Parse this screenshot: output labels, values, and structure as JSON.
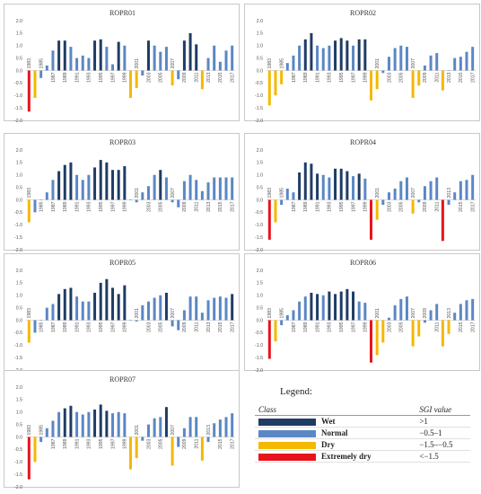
{
  "legend": {
    "title": "Legend:",
    "col_class": "Class",
    "col_value": "SGI value",
    "rows": [
      {
        "name": "Wet",
        "range": ">1",
        "color": "#1F3C64"
      },
      {
        "name": "Normal",
        "range": "−0.5–1",
        "color": "#5B87C4"
      },
      {
        "name": "Dry",
        "range": "−1.5–−0.5",
        "color": "#F5B800"
      },
      {
        "name": "Extremely dry",
        "range": "<−1.5",
        "color": "#E8141C"
      }
    ]
  },
  "chart_data": [
    {
      "type": "bar",
      "title": "ROPR01",
      "ylim": [
        -2.0,
        2.0
      ],
      "yticks": [
        "2.0",
        "1.5",
        "1.0",
        "0.5",
        "0.0",
        "-0.5",
        "-1.0",
        "-1.5",
        "-2.0"
      ],
      "categories": [
        "1983",
        "1984",
        "1985",
        "1986",
        "1987",
        "1988",
        "1989",
        "1990",
        "1991",
        "1992",
        "1993",
        "1994",
        "1995",
        "1996",
        "1997",
        "1998",
        "1999",
        "2000",
        "2001",
        "2002",
        "2003",
        "2004",
        "2005",
        "2006",
        "2007",
        "2008",
        "2009",
        "2010",
        "2011",
        "2012",
        "2013",
        "2014",
        "2015",
        "2016",
        "2017"
      ],
      "xtick_labels": [
        "1983",
        "1985",
        "1987",
        "1989",
        "1991",
        "1993",
        "1995",
        "1997",
        "1999",
        "2001",
        "2003",
        "2005",
        "2007",
        "2009",
        "2011",
        "2013",
        "2015",
        "2017"
      ],
      "values": [
        -1.65,
        -1.1,
        -0.3,
        0.2,
        0.8,
        1.2,
        1.2,
        0.95,
        0.5,
        0.6,
        0.5,
        1.2,
        1.25,
        0.95,
        0.25,
        1.15,
        1.0,
        -1.1,
        -0.7,
        -0.2,
        1.2,
        1.0,
        0.75,
        0.95,
        -0.6,
        -0.35,
        1.2,
        1.5,
        1.05,
        -0.75,
        0.5,
        1.0,
        0.35,
        0.8,
        1.0
      ]
    },
    {
      "type": "bar",
      "title": "ROPR02",
      "ylim": [
        -2.0,
        2.0
      ],
      "yticks": [
        "2.0",
        "1.5",
        "1.0",
        "0.5",
        "0.0",
        "-0.5",
        "-1.0",
        "-1.5",
        "-2.0"
      ],
      "categories": [
        "1983",
        "1984",
        "1985",
        "1986",
        "1987",
        "1988",
        "1989",
        "1990",
        "1991",
        "1992",
        "1993",
        "1994",
        "1995",
        "1996",
        "1997",
        "1998",
        "1999",
        "2000",
        "2001",
        "2002",
        "2003",
        "2004",
        "2005",
        "2006",
        "2007",
        "2008",
        "2009",
        "2010",
        "2011",
        "2012",
        "2013",
        "2014",
        "2015",
        "2016",
        "2017"
      ],
      "xtick_labels": [
        "1983",
        "1985",
        "1987",
        "1989",
        "1991",
        "1993",
        "1995",
        "1997",
        "1999",
        "2001",
        "2003",
        "2005",
        "2007",
        "2009",
        "2011",
        "2013",
        "2015",
        "2017"
      ],
      "values": [
        -1.4,
        -1.0,
        -0.55,
        0.3,
        0.6,
        1.0,
        1.25,
        1.5,
        1.0,
        0.9,
        1.0,
        1.2,
        1.3,
        1.2,
        1.0,
        1.25,
        1.25,
        -1.2,
        -0.75,
        -0.1,
        0.55,
        0.9,
        1.0,
        0.95,
        -1.1,
        -0.6,
        0.2,
        0.6,
        0.7,
        -0.8,
        0.0,
        0.5,
        0.55,
        0.75,
        0.95
      ]
    },
    {
      "type": "bar",
      "title": "ROPR03",
      "ylim": [
        -2.0,
        2.0
      ],
      "yticks": [
        "2.0",
        "1.5",
        "1.0",
        "0.5",
        "0.0",
        "-0.5",
        "-1.0",
        "-1.5",
        "-2.0"
      ],
      "categories": [
        "1983",
        "1984",
        "1985",
        "1986",
        "1987",
        "1988",
        "1989",
        "1990",
        "1991",
        "1992",
        "1993",
        "1994",
        "1995",
        "1996",
        "1997",
        "1998",
        "1999",
        "2000",
        "2001",
        "2002",
        "2003",
        "2004",
        "2005",
        "2006",
        "2007",
        "2008",
        "2009",
        "2010",
        "2011",
        "2012",
        "2013",
        "2014",
        "2015",
        "2016",
        "2017"
      ],
      "xtick_labels": [
        "1983",
        "1985",
        "1987",
        "1989",
        "1991",
        "1993",
        "1995",
        "1997",
        "1999",
        "2001",
        "2003",
        "2005",
        "2007",
        "2009",
        "2011",
        "2013",
        "2015",
        "2017"
      ],
      "values": [
        -0.9,
        -0.5,
        0.0,
        0.3,
        0.8,
        1.15,
        1.4,
        1.5,
        1.0,
        0.8,
        1.0,
        1.3,
        1.6,
        1.5,
        1.2,
        1.2,
        1.35,
        0.0,
        -0.1,
        0.3,
        0.55,
        1.0,
        1.2,
        0.9,
        -0.1,
        -0.3,
        0.75,
        1.0,
        0.8,
        0.35,
        0.7,
        0.9,
        0.9,
        0.9,
        0.9
      ]
    },
    {
      "type": "bar",
      "title": "ROPR04",
      "ylim": [
        -2.0,
        2.0
      ],
      "yticks": [
        "2.0",
        "1.5",
        "1.0",
        "0.5",
        "0.0",
        "-0.5",
        "-1.0",
        "-1.5",
        "-2.0"
      ],
      "categories": [
        "1983",
        "1984",
        "1985",
        "1986",
        "1987",
        "1988",
        "1989",
        "1990",
        "1991",
        "1992",
        "1993",
        "1994",
        "1995",
        "1996",
        "1997",
        "1998",
        "1999",
        "2000",
        "2001",
        "2002",
        "2003",
        "2004",
        "2005",
        "2006",
        "2007",
        "2008",
        "2009",
        "2010",
        "2011",
        "2012",
        "2013",
        "2014",
        "2015",
        "2016",
        "2017"
      ],
      "xtick_labels": [
        "1983",
        "1985",
        "1987",
        "1989",
        "1991",
        "1993",
        "1995",
        "1997",
        "1999",
        "2001",
        "2003",
        "2005",
        "2007",
        "2009",
        "2011",
        "2013",
        "2015",
        "2017"
      ],
      "values": [
        -1.6,
        -0.9,
        -0.2,
        0.45,
        0.3,
        1.1,
        1.5,
        1.45,
        1.05,
        1.0,
        0.9,
        1.25,
        1.25,
        1.15,
        0.95,
        1.05,
        0.85,
        -1.6,
        -0.8,
        -0.2,
        0.3,
        0.45,
        0.75,
        0.9,
        -0.55,
        -0.1,
        0.55,
        0.75,
        0.9,
        -1.65,
        -0.2,
        0.3,
        0.75,
        0.8,
        1.0
      ]
    },
    {
      "type": "bar",
      "title": "ROPR05",
      "ylim": [
        -2.0,
        2.0
      ],
      "yticks": [
        "2.0",
        "1.5",
        "1.0",
        "0.5",
        "0.0",
        "-0.5",
        "-1.0",
        "-1.5",
        "-2.0"
      ],
      "categories": [
        "1983",
        "1984",
        "1985",
        "1986",
        "1987",
        "1988",
        "1989",
        "1990",
        "1991",
        "1992",
        "1993",
        "1994",
        "1995",
        "1996",
        "1997",
        "1998",
        "1999",
        "2000",
        "2001",
        "2002",
        "2003",
        "2004",
        "2005",
        "2006",
        "2007",
        "2008",
        "2009",
        "2010",
        "2011",
        "2012",
        "2013",
        "2014",
        "2015",
        "2016",
        "2017"
      ],
      "xtick_labels": [
        "1983",
        "1985",
        "1987",
        "1989",
        "1991",
        "1993",
        "1995",
        "1997",
        "1999",
        "2001",
        "2003",
        "2005",
        "2007",
        "2009",
        "2011",
        "2013",
        "2015",
        "2017"
      ],
      "values": [
        -0.9,
        -0.5,
        0.0,
        0.5,
        0.65,
        1.05,
        1.25,
        1.3,
        0.95,
        0.75,
        0.75,
        1.1,
        1.5,
        1.65,
        1.3,
        1.05,
        1.4,
        0.0,
        -0.05,
        0.6,
        0.75,
        0.9,
        1.0,
        1.1,
        -0.25,
        -0.4,
        0.4,
        0.95,
        0.95,
        0.3,
        0.8,
        0.9,
        0.95,
        0.9,
        1.05
      ]
    },
    {
      "type": "bar",
      "title": "ROPR06",
      "ylim": [
        -2.0,
        2.0
      ],
      "yticks": [
        "2.0",
        "1.5",
        "1.0",
        "0.5",
        "0.0",
        "-0.5",
        "-1.0",
        "-1.5",
        "-2.0"
      ],
      "categories": [
        "1983",
        "1984",
        "1985",
        "1986",
        "1987",
        "1988",
        "1989",
        "1990",
        "1991",
        "1992",
        "1993",
        "1994",
        "1995",
        "1996",
        "1997",
        "1998",
        "1999",
        "2000",
        "2001",
        "2002",
        "2003",
        "2004",
        "2005",
        "2006",
        "2007",
        "2008",
        "2009",
        "2010",
        "2011",
        "2012",
        "2013",
        "2014",
        "2015",
        "2016",
        "2017"
      ],
      "xtick_labels": [
        "1983",
        "1985",
        "1987",
        "1989",
        "1991",
        "1993",
        "1995",
        "1997",
        "1999",
        "2001",
        "2003",
        "2005",
        "2007",
        "2009",
        "2011",
        "2013",
        "2015",
        "2017"
      ],
      "values": [
        -1.55,
        -0.85,
        -0.2,
        0.2,
        0.4,
        0.75,
        0.95,
        1.1,
        1.05,
        1.0,
        1.15,
        1.05,
        1.15,
        1.25,
        1.15,
        0.75,
        0.7,
        -1.7,
        -1.4,
        -0.9,
        0.1,
        0.6,
        0.85,
        0.95,
        -1.05,
        -0.65,
        -0.1,
        0.4,
        0.65,
        -1.05,
        -0.55,
        0.3,
        0.65,
        0.8,
        0.85
      ]
    },
    {
      "type": "bar",
      "title": "ROPR07",
      "ylim": [
        -2.0,
        2.0
      ],
      "yticks": [
        "2.0",
        "1.5",
        "1.0",
        "0.5",
        "0.0",
        "-0.5",
        "-1.0",
        "-1.5",
        "-2.0"
      ],
      "categories": [
        "1983",
        "1984",
        "1985",
        "1986",
        "1987",
        "1988",
        "1989",
        "1990",
        "1991",
        "1992",
        "1993",
        "1994",
        "1995",
        "1996",
        "1997",
        "1998",
        "1999",
        "2000",
        "2001",
        "2002",
        "2003",
        "2004",
        "2005",
        "2006",
        "2007",
        "2008",
        "2009",
        "2010",
        "2011",
        "2012",
        "2013",
        "2014",
        "2015",
        "2016",
        "2017"
      ],
      "xtick_labels": [
        "1983",
        "1985",
        "1987",
        "1989",
        "1991",
        "1993",
        "1995",
        "1997",
        "1999",
        "2001",
        "2003",
        "2005",
        "2007",
        "2009",
        "2011",
        "2013",
        "2015",
        "2017"
      ],
      "values": [
        -1.7,
        -1.0,
        -0.2,
        0.35,
        0.65,
        1.0,
        1.15,
        1.25,
        1.0,
        0.9,
        1.0,
        1.1,
        1.3,
        1.05,
        0.95,
        1.0,
        0.95,
        -1.3,
        -0.85,
        -0.15,
        0.5,
        0.75,
        0.8,
        1.2,
        -1.15,
        -0.4,
        0.35,
        0.8,
        0.8,
        -0.95,
        -0.2,
        0.55,
        0.7,
        0.8,
        0.95
      ]
    }
  ]
}
